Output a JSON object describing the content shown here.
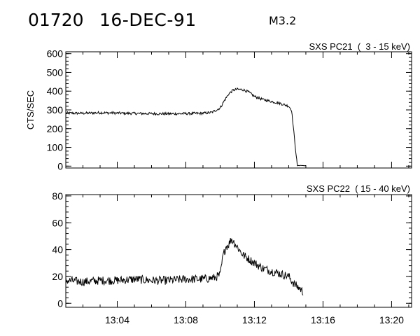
{
  "header": {
    "event_id": "01720",
    "date": "16-DEC-91",
    "flare_class": "M3.2"
  },
  "chart_data": [
    {
      "type": "line",
      "title": "SXS PC21  (  3 - 15 keV)",
      "ylabel": "CTS/SEC",
      "xlabel": "",
      "xlim": [
        "13:01:00",
        "13:21:10"
      ],
      "ylim": [
        -10,
        610
      ],
      "yticks": [
        0,
        100,
        200,
        300,
        400,
        500,
        600
      ],
      "xticks": [],
      "grid": false,
      "series": [
        {
          "x": [
            "13:01:00",
            "13:02:00",
            "13:03:00",
            "13:04:00",
            "13:05:00",
            "13:06:00",
            "13:07:00",
            "13:08:00",
            "13:08:30",
            "13:09:00",
            "13:09:30",
            "13:10:00",
            "13:10:15",
            "13:10:30",
            "13:10:45",
            "13:11:00",
            "13:11:20",
            "13:11:40",
            "13:12:00",
            "13:12:30",
            "13:13:00",
            "13:13:30",
            "13:14:00",
            "13:14:10",
            "13:14:20",
            "13:14:30",
            "13:14:40",
            "13:15:00"
          ],
          "values": [
            283,
            282,
            285,
            283,
            281,
            280,
            279,
            280,
            281,
            282,
            286,
            310,
            350,
            385,
            405,
            410,
            408,
            395,
            372,
            355,
            345,
            335,
            320,
            300,
            150,
            2,
            4,
            2
          ]
        }
      ]
    },
    {
      "type": "line",
      "title": "SXS PC22  ( 15 - 40 keV)",
      "ylabel": "",
      "xlabel": "",
      "xlim": [
        "13:01:00",
        "13:21:10"
      ],
      "ylim": [
        -3,
        81
      ],
      "yticks": [
        0,
        20,
        40,
        60,
        80
      ],
      "xticks": [
        "13:04",
        "13:08",
        "13:12",
        "13:16",
        "13:20"
      ],
      "grid": false,
      "series": [
        {
          "x": [
            "13:01:00",
            "13:02:00",
            "13:03:00",
            "13:04:00",
            "13:05:00",
            "13:06:00",
            "13:07:00",
            "13:08:00",
            "13:09:00",
            "13:09:40",
            "13:10:00",
            "13:10:10",
            "13:10:20",
            "13:10:30",
            "13:10:40",
            "13:10:50",
            "13:11:00",
            "13:11:20",
            "13:11:40",
            "13:12:00",
            "13:12:30",
            "13:13:00",
            "13:13:30",
            "13:14:00",
            "13:14:20",
            "13:14:40",
            "13:14:50"
          ],
          "values": [
            17,
            16,
            17,
            17,
            18,
            17,
            17,
            18,
            18,
            19,
            21,
            35,
            42,
            44,
            48,
            45,
            42,
            36,
            33,
            30,
            26,
            24,
            22,
            20,
            14,
            11,
            8
          ]
        }
      ]
    }
  ]
}
